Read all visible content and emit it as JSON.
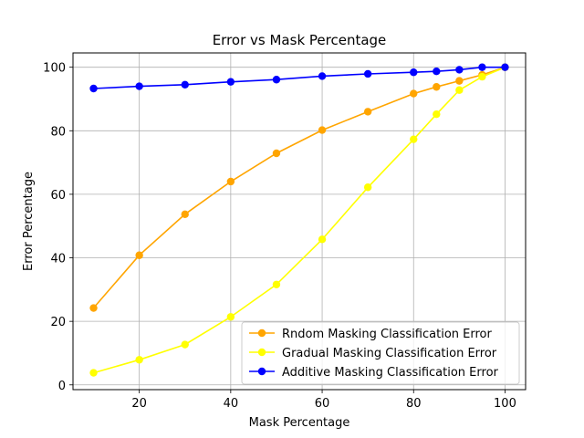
{
  "chart_data": {
    "type": "line",
    "title": "Error vs Mask Percentage",
    "xlabel": "Mask Percentage",
    "ylabel": "Error Percentage",
    "xlim": [
      5.5,
      104.5
    ],
    "ylim": [
      -1.5,
      104.5
    ],
    "xticks": [
      20,
      40,
      60,
      80,
      100
    ],
    "yticks": [
      0,
      20,
      40,
      60,
      80,
      100
    ],
    "grid": true,
    "legend_position": "lower-right",
    "series": [
      {
        "name": "Rndom Masking Classification Error",
        "color": "#ffa500",
        "x": [
          10,
          20,
          30,
          40,
          50,
          60,
          70,
          80,
          85,
          90,
          95,
          100
        ],
        "y": [
          24.2,
          40.8,
          53.7,
          64.0,
          72.9,
          80.2,
          86.0,
          91.7,
          93.8,
          95.7,
          97.6,
          100.0
        ]
      },
      {
        "name": "Gradual Masking Classification Error",
        "color": "#ffff00",
        "x": [
          10,
          20,
          30,
          40,
          50,
          60,
          70,
          80,
          85,
          90,
          95,
          100
        ],
        "y": [
          3.8,
          7.9,
          12.7,
          21.4,
          31.6,
          45.8,
          62.2,
          77.3,
          85.2,
          92.8,
          97.0,
          100.0
        ]
      },
      {
        "name": "Additive Masking Classification Error",
        "color": "#0000ff",
        "x": [
          10,
          20,
          30,
          40,
          50,
          60,
          70,
          80,
          85,
          90,
          95,
          100
        ],
        "y": [
          93.3,
          94.0,
          94.5,
          95.4,
          96.1,
          97.2,
          97.9,
          98.4,
          98.7,
          99.2,
          100.0,
          100.0
        ]
      }
    ]
  }
}
